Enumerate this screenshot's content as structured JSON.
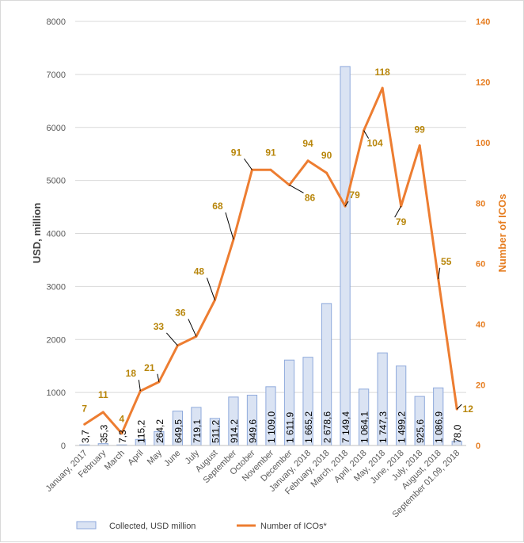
{
  "chart_data": {
    "type": "bar+line",
    "title": "",
    "categories": [
      "January, 2017",
      "February",
      "March",
      "April",
      "May",
      "June",
      "July",
      "August",
      "September",
      "October",
      "November",
      "December",
      "January, 2018",
      "February, 2018",
      "March, 2018",
      "April, 2018",
      "May, 2018",
      "June, 2018",
      "July, 2018",
      "August, 2018",
      "September 01.09, 2018"
    ],
    "series": [
      {
        "name": "Collected, USD million",
        "type": "bar",
        "axis": "left",
        "color": "#dae3f3",
        "border": "#8faadc",
        "values": [
          3.7,
          35.3,
          7.3,
          115.2,
          264.2,
          649.5,
          719.1,
          511.2,
          914.2,
          949.6,
          1109.0,
          1611.9,
          1665.2,
          2678.6,
          7149.4,
          1064.1,
          1747.3,
          1499.2,
          925.6,
          1086.9,
          78.0
        ],
        "labels": [
          "3,7",
          "35,3",
          "7,3",
          "115,2",
          "264,2",
          "649,5",
          "719,1",
          "511,2",
          "914,2",
          "949,6",
          "1 109,0",
          "1 611,9",
          "1 665,2",
          "2 678,6",
          "7 149,4",
          "1 064,1",
          "1 747,3",
          "1 499,2",
          "925,6",
          "1 086,9",
          "78,0"
        ]
      },
      {
        "name": "Number of ICOs*",
        "type": "line",
        "axis": "right",
        "color": "#ed7d31",
        "label_color": "#b8860b",
        "values": [
          7,
          11,
          4,
          18,
          21,
          33,
          36,
          48,
          68,
          91,
          91,
          86,
          94,
          90,
          79,
          104,
          118,
          79,
          99,
          55,
          12
        ],
        "labels": [
          "7",
          "11",
          "4",
          "18",
          "21",
          "33",
          "36",
          "48",
          "68",
          "91",
          "91",
          "86",
          "94",
          "90",
          "79",
          "104",
          "118",
          "79",
          "99",
          "55",
          "12"
        ]
      }
    ],
    "ylabel": "USD, million",
    "y2label": "Number of ICOs",
    "ylim": [
      0,
      8000
    ],
    "y2lim": [
      0,
      140
    ],
    "yticks": [
      "0",
      "1000",
      "2000",
      "3000",
      "4000",
      "5000",
      "6000",
      "7000",
      "8000"
    ],
    "y2ticks": [
      "0",
      "20",
      "40",
      "60",
      "80",
      "100",
      "120",
      "140"
    ],
    "legend": {
      "position": "bottom",
      "items": [
        "Collected, USD million",
        "Number of ICOs*"
      ]
    },
    "grid": true
  }
}
